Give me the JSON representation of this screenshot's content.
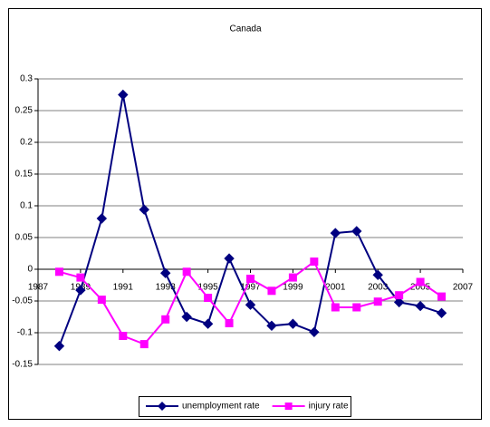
{
  "chart_data": {
    "type": "line",
    "title": "Canada",
    "x": [
      1988,
      1989,
      1990,
      1991,
      1992,
      1993,
      1994,
      1995,
      1996,
      1997,
      1998,
      1999,
      2000,
      2001,
      2002,
      2003,
      2004,
      2005,
      2006
    ],
    "series": [
      {
        "name": "unemployment rate",
        "color": "#000080",
        "marker": "diamond",
        "values": [
          -0.121,
          -0.033,
          0.08,
          0.275,
          0.094,
          -0.006,
          -0.075,
          -0.086,
          0.017,
          -0.056,
          -0.089,
          -0.086,
          -0.099,
          0.057,
          0.06,
          -0.009,
          -0.052,
          -0.058,
          -0.069
        ]
      },
      {
        "name": "injury rate",
        "color": "#ff00ff",
        "marker": "square",
        "values": [
          -0.004,
          -0.013,
          -0.048,
          -0.105,
          -0.118,
          -0.079,
          -0.004,
          -0.045,
          -0.085,
          -0.015,
          -0.034,
          -0.013,
          0.012,
          -0.06,
          -0.06,
          -0.051,
          -0.041,
          -0.02,
          -0.043
        ]
      }
    ],
    "xlim": [
      1987,
      2007
    ],
    "xticks": [
      1987,
      1989,
      1991,
      1993,
      1995,
      1997,
      1999,
      2001,
      2003,
      2005,
      2007
    ],
    "ylim": [
      -0.15,
      0.3
    ],
    "yticks": [
      -0.15,
      -0.1,
      -0.05,
      0,
      0.05,
      0.1,
      0.15,
      0.2,
      0.25,
      0.3
    ],
    "grid": true,
    "legend": "bottom"
  }
}
